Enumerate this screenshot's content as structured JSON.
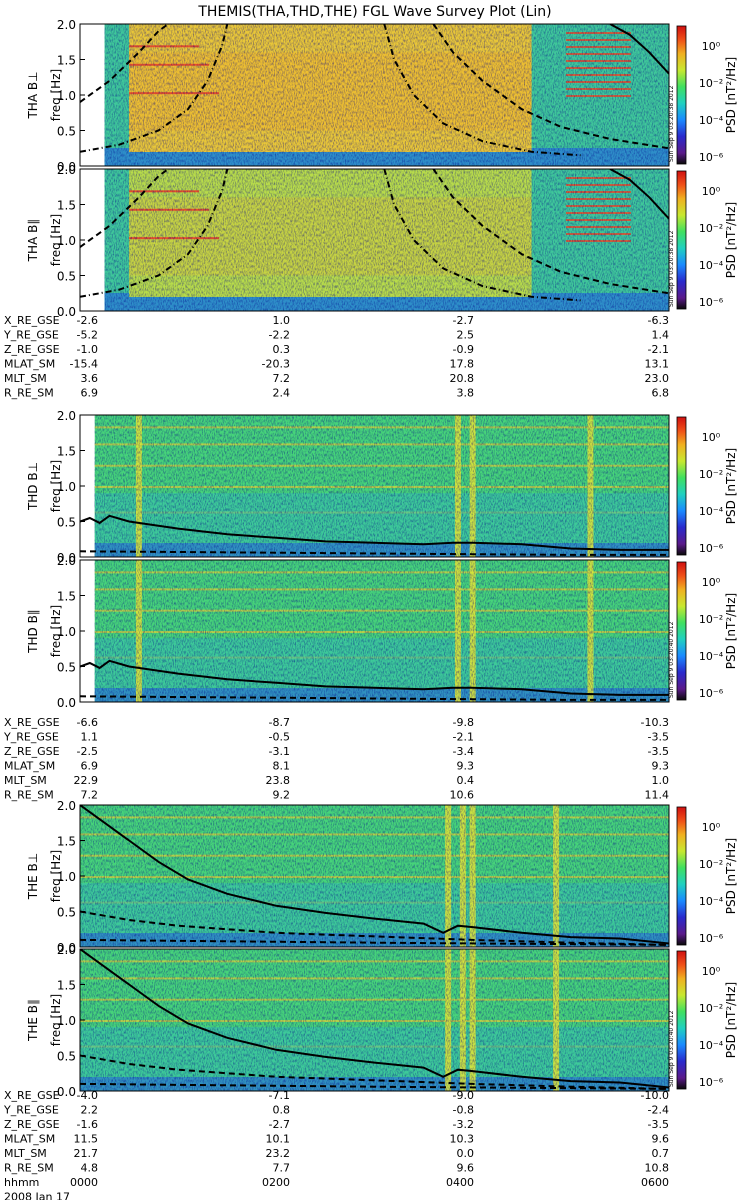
{
  "title": "THEMIS(THA,THD,THE) FGL Wave Survey Plot (Lin)",
  "colors": {
    "colorbar": [
      "#0a0a0a",
      "#5a1a8a",
      "#2a2acc",
      "#1a8aff",
      "#20d0c0",
      "#40e060",
      "#c8e830",
      "#f0b020",
      "#f05018",
      "#d01010"
    ],
    "line": "#000000",
    "axis": "#000000"
  },
  "colorbar": {
    "label": "PSD  [nT²/Hz]",
    "ticks": [
      "10⁰",
      "10⁻²",
      "10⁻⁴",
      "10⁻⁶"
    ]
  },
  "freq_ticks": [
    "0.0",
    "0.5",
    "1.0",
    "1.5",
    "2.0"
  ],
  "ylabel_unit": "freq [Hz]",
  "probes": [
    {
      "id": "THA",
      "panels": [
        {
          "label": "THA B⊥",
          "stamp": "Sun Sep  9 03:20:38 2012"
        },
        {
          "label": "THA B∥",
          "stamp": "Sun Sep  9 03:20:38 2012"
        }
      ],
      "ephem_labels": [
        "X_RE_GSE",
        "Y_RE_GSE",
        "Z_RE_GSE",
        "MLAT_SM",
        "MLT_SM",
        "R_RE_SM"
      ],
      "ephem": [
        [
          "-2.6",
          "1.0",
          "-2.7",
          "-6.3"
        ],
        [
          "-5.2",
          "-2.2",
          "2.5",
          "1.4"
        ],
        [
          "-1.0",
          "0.3",
          "-0.9",
          "-2.1"
        ],
        [
          "-15.4",
          "-20.3",
          "17.8",
          "13.1"
        ],
        [
          "3.6",
          "7.2",
          "20.8",
          "23.0"
        ],
        [
          "6.9",
          "2.4",
          "3.8",
          "6.8"
        ]
      ]
    },
    {
      "id": "THD",
      "panels": [
        {
          "label": "THD B⊥",
          "stamp": ""
        },
        {
          "label": "THD B∥",
          "stamp": "Sun Sep  9 03:20:40 2012"
        }
      ],
      "ephem_labels": [
        "X_RE_GSE",
        "Y_RE_GSE",
        "Z_RE_GSE",
        "MLAT_SM",
        "MLT_SM",
        "R_RE_SM"
      ],
      "ephem": [
        [
          "-6.6",
          "-8.7",
          "-9.8",
          "-10.3"
        ],
        [
          "1.1",
          "-0.5",
          "-2.1",
          "-3.5"
        ],
        [
          "-2.5",
          "-3.1",
          "-3.4",
          "-3.5"
        ],
        [
          "6.9",
          "8.1",
          "9.3",
          "9.3"
        ],
        [
          "22.9",
          "23.8",
          "0.4",
          "1.0"
        ],
        [
          "7.2",
          "9.2",
          "10.6",
          "11.4"
        ]
      ]
    },
    {
      "id": "THE",
      "panels": [
        {
          "label": "THE B⊥",
          "stamp": ""
        },
        {
          "label": "THE B∥",
          "stamp": "Sun Sep  9 03:20:40 2012"
        }
      ],
      "ephem_labels": [
        "X_RE_GSE",
        "Y_RE_GSE",
        "Z_RE_GSE",
        "MLAT_SM",
        "MLT_SM",
        "R_RE_SM",
        "hhmm"
      ],
      "ephem": [
        [
          "-4.0",
          "-7.1",
          "-9.0",
          "-10.0"
        ],
        [
          "2.2",
          "0.8",
          "-0.8",
          "-2.4"
        ],
        [
          "-1.6",
          "-2.7",
          "-3.2",
          "-3.5"
        ],
        [
          "11.5",
          "10.1",
          "10.3",
          "9.6"
        ],
        [
          "21.7",
          "23.2",
          "0.0",
          "0.7"
        ],
        [
          "4.8",
          "7.7",
          "9.6",
          "10.8"
        ],
        [
          "0000",
          "0200",
          "0400",
          "0600"
        ]
      ],
      "date": "2008 Jan 17"
    }
  ],
  "chart_data": {
    "type": "heatmap",
    "title": "THEMIS(THA,THD,THE) FGL Wave Survey Plot (Lin)",
    "xlabel": "hhmm",
    "x_ticks": [
      "0000",
      "0200",
      "0400",
      "0600"
    ],
    "xlim_hours": [
      0,
      6
    ],
    "ylabel": "freq [Hz]",
    "ylim": [
      0,
      2.0
    ],
    "y_ticks": [
      0.0,
      0.5,
      1.0,
      1.5,
      2.0
    ],
    "colorbar": {
      "label": "PSD [nT²/Hz]",
      "scale": "log",
      "range": [
        1e-07,
        10.0
      ],
      "ticks": [
        "10⁰",
        "10⁻²",
        "10⁻⁴",
        "10⁻⁶"
      ]
    },
    "date": "2008 Jan 17",
    "panels": [
      {
        "name": "THA B⊥",
        "data_start_h": 0.25,
        "data_end_h": 6.0,
        "high_power_h": [
          0.5,
          4.6
        ]
      },
      {
        "name": "THA B∥",
        "data_start_h": 0.25,
        "data_end_h": 6.0,
        "high_power_h": [
          0.5,
          4.6
        ]
      },
      {
        "name": "THD B⊥",
        "data_start_h": 0.15,
        "data_end_h": 6.0,
        "spikes_h": [
          0.6,
          3.85,
          4.0,
          5.2
        ]
      },
      {
        "name": "THD B∥",
        "data_start_h": 0.15,
        "data_end_h": 6.0,
        "spikes_h": [
          0.6,
          3.85,
          4.0,
          5.2
        ]
      },
      {
        "name": "THE B⊥",
        "data_start_h": 0.0,
        "data_end_h": 6.0,
        "spikes_h": [
          3.75,
          3.9,
          4.0,
          4.85
        ]
      },
      {
        "name": "THE B∥",
        "data_start_h": 0.0,
        "data_end_h": 6.0,
        "spikes_h": [
          3.75,
          3.9,
          4.0,
          4.85
        ]
      }
    ],
    "overlay_lines": {
      "THA": {
        "solid": [
          [
            5.4,
            2.0
          ],
          [
            5.6,
            1.85
          ],
          [
            5.8,
            1.6
          ],
          [
            6.0,
            1.3
          ]
        ],
        "dashed_left": [
          [
            0.0,
            0.9
          ],
          [
            0.3,
            1.2
          ],
          [
            0.6,
            1.6
          ],
          [
            0.8,
            1.9
          ],
          [
            0.9,
            2.0
          ]
        ],
        "dashdot_left": [
          [
            0.0,
            0.2
          ],
          [
            0.4,
            0.3
          ],
          [
            0.8,
            0.5
          ],
          [
            1.1,
            0.8
          ],
          [
            1.3,
            1.2
          ],
          [
            1.45,
            1.7
          ],
          [
            1.5,
            2.0
          ]
        ],
        "dashdot_right": [
          [
            3.1,
            2.0
          ],
          [
            3.2,
            1.5
          ],
          [
            3.4,
            1.0
          ],
          [
            3.7,
            0.6
          ],
          [
            4.1,
            0.35
          ],
          [
            4.6,
            0.2
          ],
          [
            5.1,
            0.15
          ]
        ],
        "dashed_right": [
          [
            3.6,
            2.0
          ],
          [
            3.8,
            1.6
          ],
          [
            4.1,
            1.2
          ],
          [
            4.5,
            0.8
          ],
          [
            4.9,
            0.55
          ],
          [
            5.4,
            0.38
          ],
          [
            6.0,
            0.25
          ]
        ]
      },
      "THD": {
        "solid": [
          [
            0.0,
            0.5
          ],
          [
            0.1,
            0.55
          ],
          [
            0.2,
            0.48
          ],
          [
            0.3,
            0.58
          ],
          [
            0.5,
            0.5
          ],
          [
            1.0,
            0.4
          ],
          [
            1.5,
            0.32
          ],
          [
            2.0,
            0.27
          ],
          [
            2.5,
            0.22
          ],
          [
            3.0,
            0.2
          ],
          [
            3.5,
            0.18
          ],
          [
            3.8,
            0.2
          ],
          [
            4.0,
            0.2
          ],
          [
            4.5,
            0.18
          ],
          [
            5.0,
            0.12
          ],
          [
            5.5,
            0.1
          ],
          [
            6.0,
            0.1
          ]
        ],
        "dashed": [
          [
            0.0,
            0.08
          ],
          [
            1.0,
            0.07
          ],
          [
            2.0,
            0.06
          ],
          [
            3.0,
            0.05
          ],
          [
            4.0,
            0.04
          ],
          [
            5.0,
            0.03
          ],
          [
            6.0,
            0.03
          ]
        ]
      },
      "THE": {
        "solid": [
          [
            0.0,
            2.0
          ],
          [
            0.2,
            1.8
          ],
          [
            0.5,
            1.5
          ],
          [
            0.8,
            1.2
          ],
          [
            1.1,
            0.95
          ],
          [
            1.5,
            0.75
          ],
          [
            2.0,
            0.58
          ],
          [
            2.5,
            0.48
          ],
          [
            3.0,
            0.4
          ],
          [
            3.5,
            0.33
          ],
          [
            3.7,
            0.2
          ],
          [
            3.85,
            0.3
          ],
          [
            4.0,
            0.28
          ],
          [
            4.5,
            0.2
          ],
          [
            5.0,
            0.14
          ],
          [
            5.5,
            0.12
          ],
          [
            6.0,
            0.05
          ]
        ],
        "dashed": [
          [
            0.0,
            0.5
          ],
          [
            0.5,
            0.38
          ],
          [
            1.0,
            0.3
          ],
          [
            2.0,
            0.2
          ],
          [
            3.0,
            0.15
          ],
          [
            4.0,
            0.1
          ],
          [
            5.0,
            0.06
          ],
          [
            6.0,
            0.03
          ]
        ],
        "dashed_low": [
          [
            0.0,
            0.1
          ],
          [
            3.0,
            0.06
          ],
          [
            6.0,
            0.03
          ]
        ]
      }
    }
  }
}
